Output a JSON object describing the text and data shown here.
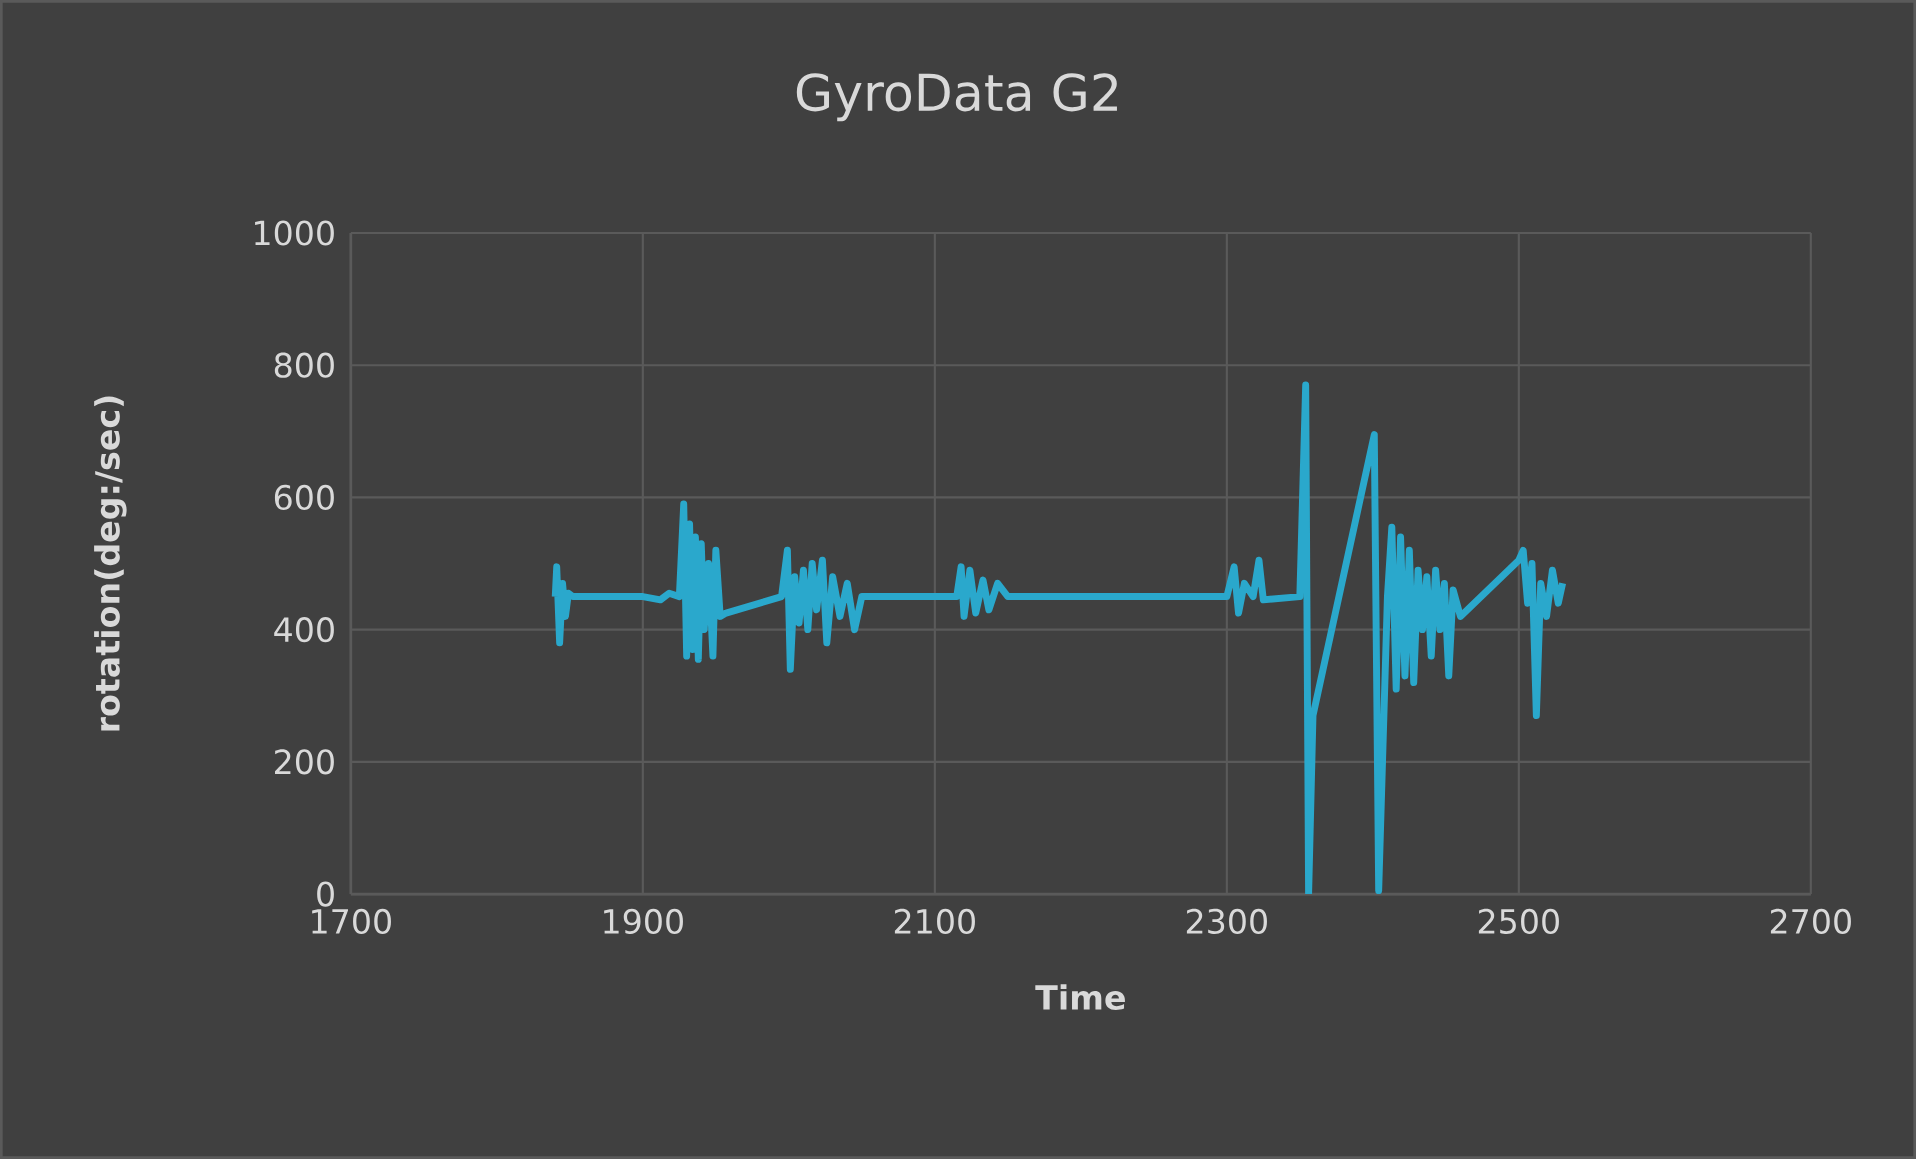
{
  "chart_data": {
    "type": "line",
    "title": "GyroData G2",
    "xlabel": "Time",
    "ylabel": "rotation(deg:/sec)",
    "x": [
      1840,
      1841,
      1843,
      1845,
      1847,
      1849,
      1852,
      1900,
      1912,
      1918,
      1925,
      1928,
      1930,
      1932,
      1934,
      1936,
      1938,
      1940,
      1942,
      1945,
      1948,
      1950,
      1953,
      1957,
      1995,
      1999,
      2001,
      2004,
      2007,
      2010,
      2013,
      2016,
      2019,
      2023,
      2026,
      2030,
      2035,
      2040,
      2045,
      2050,
      2115,
      2118,
      2120,
      2124,
      2128,
      2133,
      2137,
      2143,
      2150,
      2300,
      2305,
      2308,
      2312,
      2318,
      2322,
      2325,
      2350,
      2354,
      2356,
      2359,
      2401,
      2404,
      2410,
      2413,
      2416,
      2419,
      2422,
      2425,
      2428,
      2431,
      2434,
      2437,
      2440,
      2443,
      2446,
      2449,
      2452,
      2455,
      2460,
      2500,
      2503,
      2506,
      2509,
      2512,
      2515,
      2519,
      2523,
      2527,
      2530
    ],
    "series": [
      {
        "color": "#2aa8cc",
        "values": [
          450,
          495,
          380,
          470,
          420,
          455,
          450,
          450,
          445,
          455,
          450,
          590,
          360,
          560,
          370,
          540,
          355,
          530,
          400,
          500,
          360,
          520,
          420,
          425,
          450,
          520,
          340,
          480,
          410,
          490,
          400,
          500,
          430,
          505,
          380,
          480,
          420,
          470,
          400,
          450,
          450,
          495,
          420,
          490,
          425,
          475,
          430,
          470,
          450,
          450,
          495,
          425,
          470,
          450,
          505,
          445,
          450,
          770,
          0,
          270,
          695,
          5,
          450,
          555,
          310,
          540,
          330,
          520,
          320,
          490,
          400,
          480,
          360,
          490,
          400,
          470,
          330,
          460,
          420,
          505,
          520,
          440,
          500,
          270,
          470,
          420,
          490,
          440,
          470
        ]
      }
    ],
    "xlim": [
      1700,
      2700
    ],
    "xticks": [
      1700,
      1900,
      2100,
      2300,
      2500,
      2700
    ],
    "ylim": [
      0,
      1000
    ],
    "yticks": [
      0,
      200,
      400,
      600,
      800,
      1000
    ],
    "grid": true,
    "marker": "none",
    "line_style": "solid"
  }
}
